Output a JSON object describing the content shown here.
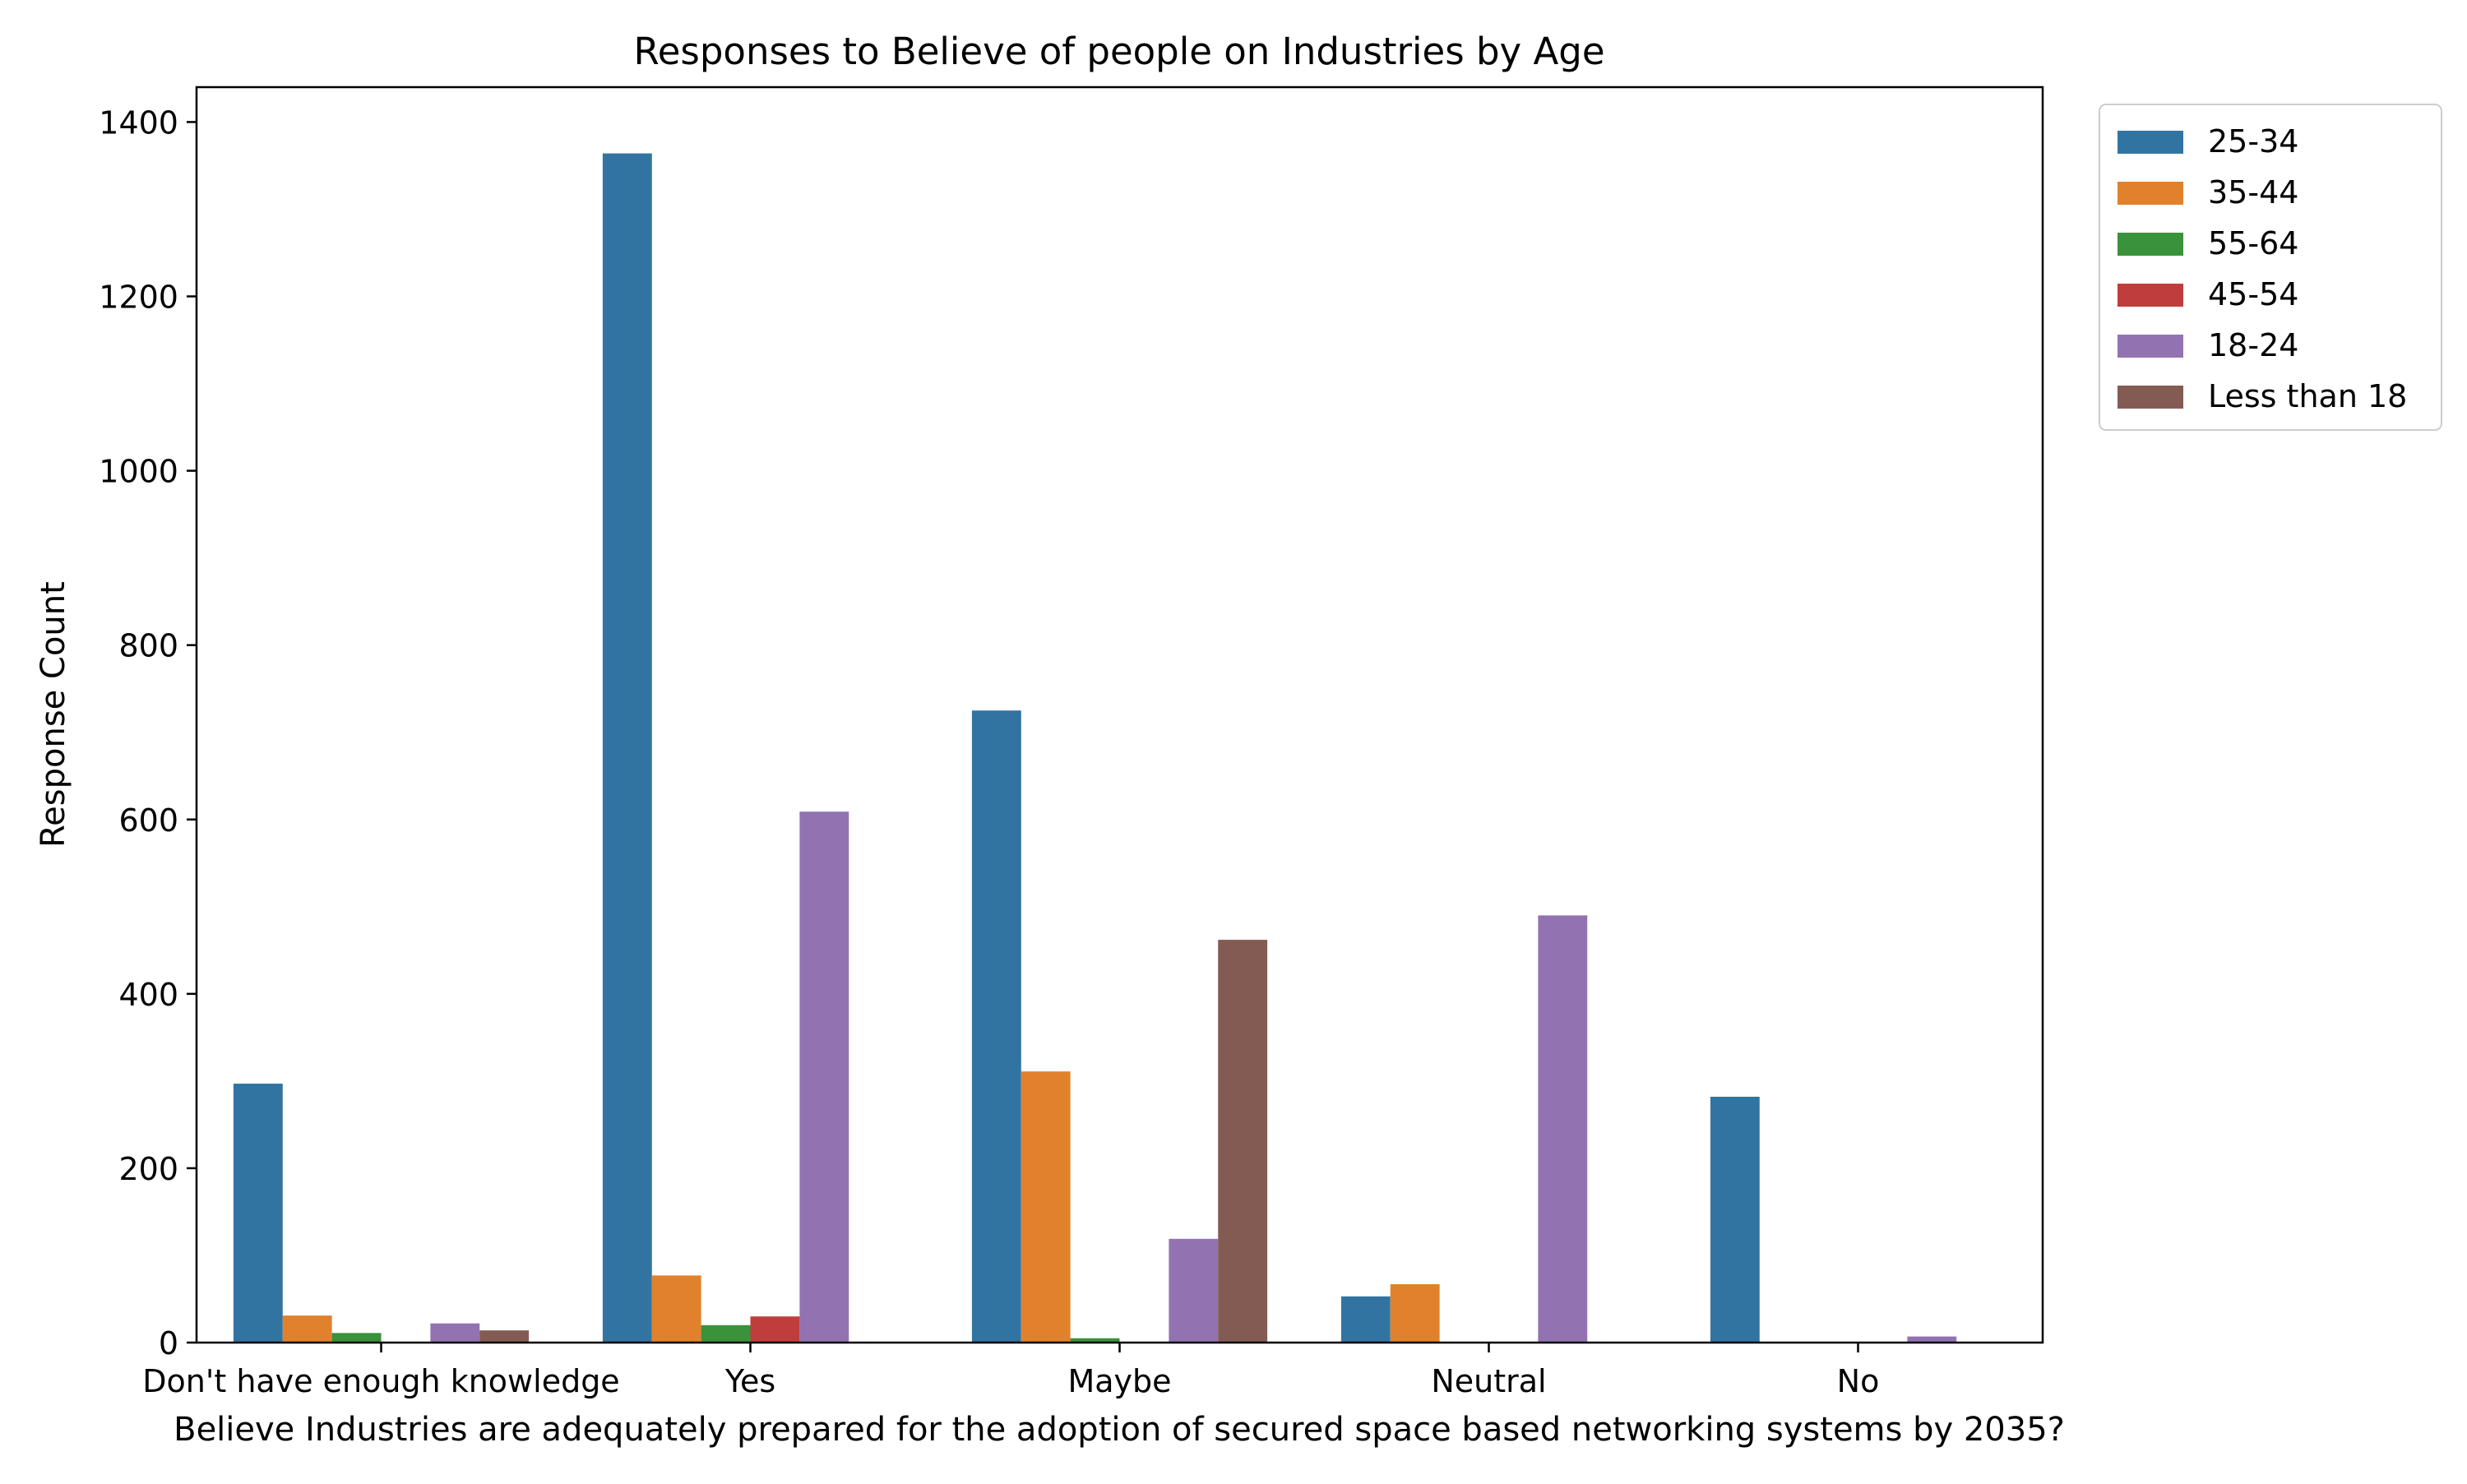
{
  "chart_data": {
    "type": "bar",
    "title": "Responses to Believe of people on Industries by Age",
    "xlabel": "Believe Industries are adequately prepared for the adoption of secured space based networking systems by 2035?",
    "ylabel": "Response Count",
    "ylim": [
      0,
      1440
    ],
    "yticks": [
      0,
      200,
      400,
      600,
      800,
      1000,
      1200,
      1400
    ],
    "grid": false,
    "legend_position": "outside-top-right",
    "categories": [
      "Don't have enough knowledge",
      "Yes",
      "Maybe",
      "Neutral",
      "No"
    ],
    "series": [
      {
        "name": "25-34",
        "color": "#3274a1",
        "values": [
          297,
          1364,
          725,
          53,
          282
        ]
      },
      {
        "name": "35-44",
        "color": "#e1812c",
        "values": [
          31,
          77,
          311,
          67,
          0
        ]
      },
      {
        "name": "55-64",
        "color": "#3a923a",
        "values": [
          11,
          20,
          5,
          0,
          0
        ]
      },
      {
        "name": "45-54",
        "color": "#c03d3e",
        "values": [
          0,
          30,
          0,
          0,
          0
        ]
      },
      {
        "name": "18-24",
        "color": "#9372b2",
        "values": [
          22,
          609,
          119,
          490,
          7
        ]
      },
      {
        "name": "Less than 18",
        "color": "#845b53",
        "values": [
          14,
          0,
          462,
          0,
          0
        ]
      }
    ]
  }
}
